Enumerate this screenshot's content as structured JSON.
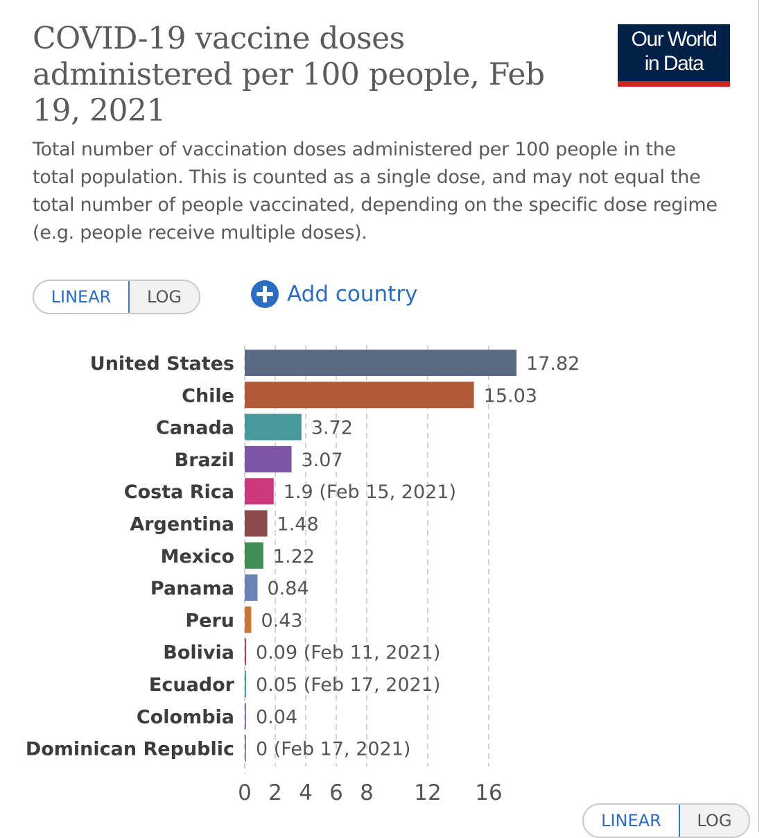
{
  "title": "COVID-19 vaccine doses administered per 100 people, Feb 19, 2021",
  "subtitle": "Total number of vaccination doses administered per 100 people in the total population. This is counted as a single dose, and may not equal the total number of people vaccinated, depending on the specific dose regime (e.g. people receive multiple doses).",
  "logo": {
    "line1": "Our World",
    "line2": "in Data"
  },
  "controls": {
    "linear_label": "LINEAR",
    "log_label": "LOG",
    "add_country_label": "Add country",
    "selected_scale": "LINEAR"
  },
  "colors": {
    "accent": "#2c6dc2",
    "logo_bg": "#002147",
    "logo_accent": "#ce261e"
  },
  "chart_data": {
    "type": "bar",
    "orientation": "horizontal",
    "categories": [
      "United States",
      "Chile",
      "Canada",
      "Brazil",
      "Costa Rica",
      "Argentina",
      "Mexico",
      "Panama",
      "Peru",
      "Bolivia",
      "Ecuador",
      "Colombia",
      "Dominican Republic"
    ],
    "values": [
      17.82,
      15.03,
      3.72,
      3.07,
      1.9,
      1.48,
      1.22,
      0.84,
      0.43,
      0.09,
      0.05,
      0.04,
      0
    ],
    "value_labels": [
      "17.82",
      "15.03",
      "3.72",
      "3.07",
      "1.9 (Feb 15, 2021)",
      "1.48",
      "1.22",
      "0.84",
      "0.43",
      "0.09 (Feb 11, 2021)",
      "0.05 (Feb 17, 2021)",
      "0.04",
      "0 (Feb 17, 2021)"
    ],
    "colors": [
      "#5b6a82",
      "#b05a38",
      "#48999a",
      "#7e56a8",
      "#cc3a7c",
      "#8a4a4e",
      "#3f8d55",
      "#6b82b4",
      "#c5783a",
      "#c23b53",
      "#3aa6a0",
      "#9a6fb3",
      "#888888"
    ],
    "xticks": [
      0,
      2,
      4,
      6,
      8,
      12,
      16
    ],
    "xlim": [
      0,
      18
    ],
    "grid": true,
    "xlabel": "",
    "ylabel": ""
  }
}
